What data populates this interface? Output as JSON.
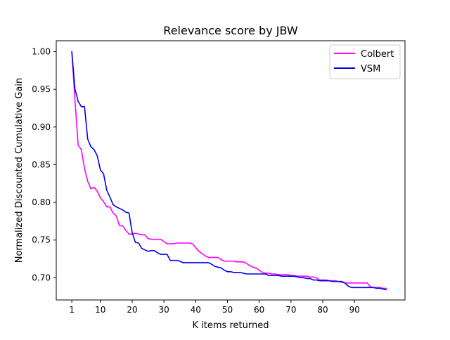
{
  "chart_data": {
    "type": "line",
    "title": "Relevance score by JBW",
    "xlabel": "K items returned",
    "ylabel": "Normalized Discounted Cumulative Gain",
    "xlim": [
      -3.9,
      105.9
    ],
    "ylim": [
      0.6705,
      1.0145
    ],
    "xticks": [
      1,
      10,
      20,
      30,
      40,
      50,
      60,
      70,
      80,
      90
    ],
    "xtick_labels": [
      "1",
      "10",
      "20",
      "30",
      "40",
      "50",
      "60",
      "70",
      "80",
      "90"
    ],
    "yticks": [
      0.7,
      0.75,
      0.8,
      0.85,
      0.9,
      0.95,
      1.0
    ],
    "ytick_labels": [
      "0.70",
      "0.75",
      "0.80",
      "0.85",
      "0.90",
      "0.95",
      "1.00"
    ],
    "grid": false,
    "legend_position": "top-right",
    "series": [
      {
        "name": "Colbert",
        "color": "#ff00ff",
        "x": [
          1,
          2,
          3,
          4,
          5,
          6,
          7,
          8,
          9,
          10,
          11,
          12,
          13,
          14,
          15,
          16,
          17,
          18,
          19,
          20,
          21,
          22,
          23,
          24,
          25,
          26,
          27,
          28,
          29,
          30,
          31,
          32,
          33,
          34,
          35,
          36,
          37,
          38,
          39,
          40,
          41,
          42,
          43,
          44,
          45,
          46,
          47,
          48,
          49,
          50,
          51,
          52,
          53,
          54,
          55,
          56,
          57,
          58,
          59,
          60,
          61,
          62,
          63,
          64,
          65,
          66,
          67,
          68,
          69,
          70,
          71,
          72,
          73,
          74,
          75,
          76,
          77,
          78,
          79,
          80,
          81,
          82,
          83,
          84,
          85,
          86,
          87,
          88,
          89,
          90,
          91,
          92,
          93,
          94,
          95,
          96,
          97,
          98,
          99,
          100
        ],
        "values": [
          1.0,
          0.935,
          0.876,
          0.87,
          0.845,
          0.828,
          0.818,
          0.82,
          0.815,
          0.806,
          0.801,
          0.794,
          0.794,
          0.786,
          0.782,
          0.769,
          0.769,
          0.763,
          0.758,
          0.758,
          0.759,
          0.758,
          0.757,
          0.757,
          0.752,
          0.751,
          0.751,
          0.751,
          0.751,
          0.748,
          0.745,
          0.745,
          0.745,
          0.746,
          0.746,
          0.746,
          0.746,
          0.746,
          0.745,
          0.74,
          0.735,
          0.732,
          0.729,
          0.727,
          0.727,
          0.727,
          0.727,
          0.724,
          0.722,
          0.722,
          0.722,
          0.722,
          0.721,
          0.721,
          0.721,
          0.719,
          0.716,
          0.714,
          0.713,
          0.71,
          0.707,
          0.706,
          0.706,
          0.705,
          0.705,
          0.704,
          0.704,
          0.704,
          0.704,
          0.703,
          0.703,
          0.702,
          0.702,
          0.702,
          0.702,
          0.701,
          0.701,
          0.7,
          0.697,
          0.697,
          0.697,
          0.696,
          0.696,
          0.696,
          0.695,
          0.694,
          0.693,
          0.693,
          0.693,
          0.693,
          0.693,
          0.693,
          0.693,
          0.693,
          0.688,
          0.687,
          0.687,
          0.687,
          0.686,
          0.686
        ]
      },
      {
        "name": "VSM",
        "color": "#0000ee",
        "x": [
          1,
          2,
          3,
          4,
          5,
          6,
          7,
          8,
          9,
          10,
          11,
          12,
          13,
          14,
          15,
          16,
          17,
          18,
          19,
          20,
          21,
          22,
          23,
          24,
          25,
          26,
          27,
          28,
          29,
          30,
          31,
          32,
          33,
          34,
          35,
          36,
          37,
          38,
          39,
          40,
          41,
          42,
          43,
          44,
          45,
          46,
          47,
          48,
          49,
          50,
          51,
          52,
          53,
          54,
          55,
          56,
          57,
          58,
          59,
          60,
          61,
          62,
          63,
          64,
          65,
          66,
          67,
          68,
          69,
          70,
          71,
          72,
          73,
          74,
          75,
          76,
          77,
          78,
          79,
          80,
          81,
          82,
          83,
          84,
          85,
          86,
          87,
          88,
          89,
          90,
          91,
          92,
          93,
          94,
          95,
          96,
          97,
          98,
          99,
          100
        ],
        "values": [
          1.0,
          0.95,
          0.934,
          0.927,
          0.927,
          0.884,
          0.874,
          0.87,
          0.862,
          0.843,
          0.838,
          0.816,
          0.807,
          0.797,
          0.794,
          0.792,
          0.79,
          0.787,
          0.786,
          0.76,
          0.747,
          0.746,
          0.739,
          0.737,
          0.735,
          0.736,
          0.736,
          0.733,
          0.731,
          0.731,
          0.731,
          0.723,
          0.723,
          0.723,
          0.722,
          0.72,
          0.72,
          0.72,
          0.72,
          0.72,
          0.72,
          0.72,
          0.72,
          0.72,
          0.718,
          0.715,
          0.714,
          0.713,
          0.71,
          0.708,
          0.708,
          0.707,
          0.707,
          0.707,
          0.706,
          0.705,
          0.705,
          0.705,
          0.705,
          0.705,
          0.705,
          0.705,
          0.703,
          0.703,
          0.703,
          0.703,
          0.702,
          0.702,
          0.702,
          0.702,
          0.702,
          0.701,
          0.7,
          0.7,
          0.699,
          0.699,
          0.697,
          0.697,
          0.696,
          0.696,
          0.696,
          0.696,
          0.695,
          0.695,
          0.695,
          0.695,
          0.693,
          0.689,
          0.687,
          0.687,
          0.687,
          0.687,
          0.687,
          0.687,
          0.687,
          0.687,
          0.686,
          0.686,
          0.685,
          0.684
        ]
      }
    ]
  }
}
